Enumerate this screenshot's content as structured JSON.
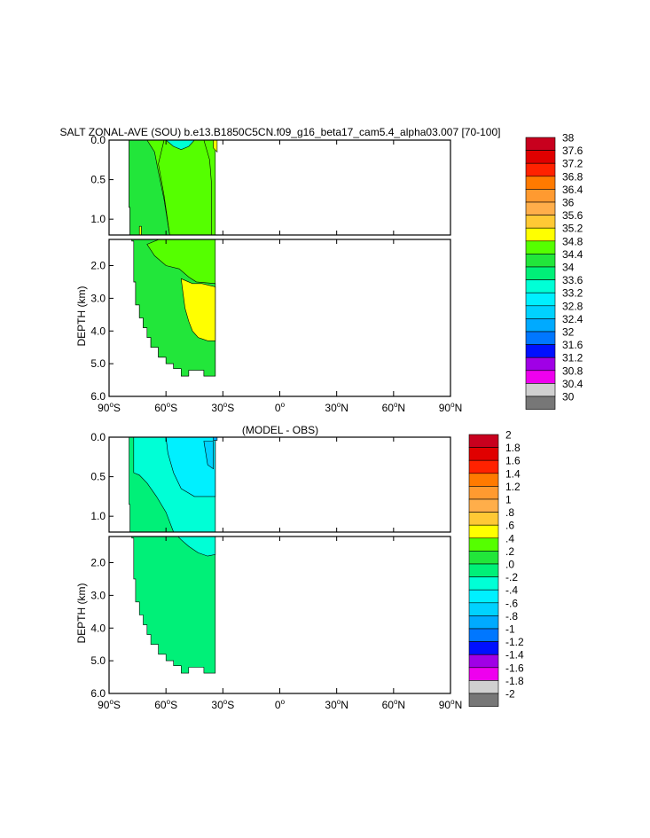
{
  "chart_data": [
    {
      "type": "heatmap",
      "title": "SALT ZONAL-AVE (SOU) b.e13.B1850C5CN.f09_g16_beta17_cam5.4_alpha03.007 [70-100]",
      "ylabel": "DEPTH (km)",
      "xlabel": "",
      "x_ticks": [
        {
          "value": -90,
          "deg": "90",
          "hem": "S"
        },
        {
          "value": -60,
          "deg": "60",
          "hem": "S"
        },
        {
          "value": -30,
          "deg": "30",
          "hem": "S"
        },
        {
          "value": 0,
          "deg": "0",
          "hem": ""
        },
        {
          "value": 30,
          "deg": "30",
          "hem": "N"
        },
        {
          "value": 60,
          "deg": "60",
          "hem": "N"
        },
        {
          "value": 90,
          "deg": "90",
          "hem": "N"
        }
      ],
      "xlim": [
        -90,
        90
      ],
      "ylim_upper": [
        0,
        1.2
      ],
      "ylim_lower": [
        1.2,
        6.0
      ],
      "y_ticks_upper": [
        "0.0",
        "0.5",
        "1.0"
      ],
      "y_ticks_upper_values": [
        0,
        0.5,
        1.0
      ],
      "y_ticks_lower": [
        "2.0",
        "3.0",
        "4.0",
        "5.0",
        "6.0"
      ],
      "y_ticks_lower_values": [
        2,
        3,
        4,
        5,
        6
      ],
      "colorbar_labels": [
        "38",
        "37.6",
        "37.2",
        "36.8",
        "36.4",
        "36",
        "35.6",
        "35.2",
        "34.8",
        "34.4",
        "34",
        "33.6",
        "33.2",
        "32.8",
        "32.4",
        "32",
        "31.6",
        "31.2",
        "30.8",
        "30.4",
        "30"
      ],
      "colorbar_colors": [
        "#c8001e",
        "#e00000",
        "#ff2200",
        "#ff7a00",
        "#ff9a30",
        "#ffae4a",
        "#ffc935",
        "#ffff00",
        "#55ff00",
        "#22e63a",
        "#00f078",
        "#00ffd6",
        "#00f0ff",
        "#00d2ff",
        "#00aaff",
        "#0077ff",
        "#0010ff",
        "#a000e6",
        "#ee00ee",
        "#d0d0d0",
        "#777777"
      ],
      "regions": [
        {
          "level": "34.4",
          "color": "#55ff00",
          "polygon": [
            [
              -79.5,
              0
            ],
            [
              -34,
              0
            ],
            [
              -34,
              5.38
            ],
            [
              -40,
              5.38
            ],
            [
              -40,
              5.2
            ],
            [
              -48,
              5.2
            ],
            [
              -48,
              5.38
            ],
            [
              -52,
              5.38
            ],
            [
              -52,
              5.15
            ],
            [
              -56,
              5.15
            ],
            [
              -56,
              5.0
            ],
            [
              -60,
              5.0
            ],
            [
              -60,
              4.8
            ],
            [
              -64,
              4.8
            ],
            [
              -64,
              4.5
            ],
            [
              -68,
              4.5
            ],
            [
              -68,
              4.2
            ],
            [
              -70,
              4.2
            ],
            [
              -70,
              3.9
            ],
            [
              -72,
              3.9
            ],
            [
              -72,
              3.6
            ],
            [
              -74,
              3.6
            ],
            [
              -74,
              3.2
            ],
            [
              -76,
              3.2
            ],
            [
              -76,
              2.5
            ],
            [
              -77,
              2.5
            ],
            [
              -77,
              1.25
            ],
            [
              -78,
              1.25
            ],
            [
              -78,
              1.2
            ],
            [
              -79,
              1.2
            ],
            [
              -79,
              0.85
            ],
            [
              -79.5,
              0.85
            ]
          ]
        },
        {
          "level": "34.0",
          "color": "#22e63a",
          "polygon": [
            [
              -79.5,
              0
            ],
            [
              -70,
              0
            ],
            [
              -66,
              0.15
            ],
            [
              -64,
              0.4
            ],
            [
              -61,
              0.75
            ],
            [
              -58,
              1.2
            ],
            [
              -58,
              1.2
            ],
            [
              -70,
              1.35
            ],
            [
              -66,
              1.7
            ],
            [
              -60,
              2.0
            ],
            [
              -53,
              2.1
            ],
            [
              -48,
              2.35
            ],
            [
              -44,
              2.5
            ],
            [
              -34,
              2.55
            ],
            [
              -34,
              5.38
            ],
            [
              -40,
              5.38
            ],
            [
              -40,
              5.2
            ],
            [
              -48,
              5.2
            ],
            [
              -48,
              5.38
            ],
            [
              -52,
              5.38
            ],
            [
              -52,
              5.15
            ],
            [
              -56,
              5.15
            ],
            [
              -56,
              5.0
            ],
            [
              -60,
              5.0
            ],
            [
              -60,
              4.8
            ],
            [
              -64,
              4.8
            ],
            [
              -64,
              4.5
            ],
            [
              -68,
              4.5
            ],
            [
              -68,
              4.2
            ],
            [
              -70,
              4.2
            ],
            [
              -70,
              3.9
            ],
            [
              -72,
              3.9
            ],
            [
              -72,
              3.6
            ],
            [
              -74,
              3.6
            ],
            [
              -74,
              3.2
            ],
            [
              -76,
              3.2
            ],
            [
              -76,
              2.5
            ],
            [
              -77,
              2.5
            ],
            [
              -77,
              1.25
            ],
            [
              -78,
              1.25
            ],
            [
              -78,
              1.2
            ],
            [
              -79,
              1.2
            ],
            [
              -79,
              0.85
            ],
            [
              -79.5,
              0.85
            ]
          ]
        },
        {
          "level": "34.4",
          "color": "#55ff00",
          "polygon": [
            [
              -61,
              0
            ],
            [
              -40,
              0
            ],
            [
              -37,
              0.25
            ],
            [
              -36,
              0.55
            ],
            [
              -36,
              1.2
            ],
            [
              -58,
              1.2
            ],
            [
              -61,
              0.7
            ],
            [
              -64,
              0.3
            ]
          ]
        },
        {
          "level": "34.8",
          "color": "#ffff00",
          "polygon": [
            [
              -52,
              2.4
            ],
            [
              -46,
              2.55
            ],
            [
              -41,
              2.55
            ],
            [
              -34,
              2.65
            ],
            [
              -34,
              4.3
            ],
            [
              -38,
              4.3
            ],
            [
              -43,
              4.2
            ],
            [
              -46,
              4.0
            ],
            [
              -48,
              3.7
            ],
            [
              -50,
              3.3
            ]
          ]
        },
        {
          "level": "34.8",
          "color": "#ffff00",
          "polygon": [
            [
              -35,
              0
            ],
            [
              -33,
              0
            ],
            [
              -33,
              0.15
            ],
            [
              -35,
              0.1
            ]
          ]
        },
        {
          "level": "34.8",
          "color": "#ffff00",
          "polygon": [
            [
              -74,
              1.09
            ],
            [
              -73,
              1.09
            ],
            [
              -73,
              1.2
            ],
            [
              -74,
              1.2
            ]
          ]
        },
        {
          "level": "33.6",
          "color": "#00ffd6",
          "polygon": [
            [
              -60,
              0
            ],
            [
              -45,
              0
            ],
            [
              -48,
              0.08
            ],
            [
              -52,
              0.12
            ],
            [
              -56,
              0.08
            ]
          ]
        }
      ]
    },
    {
      "type": "heatmap",
      "title": "(MODEL - OBS)",
      "ylabel": "DEPTH (km)",
      "xlabel": "",
      "x_ticks": [
        {
          "value": -90,
          "deg": "90",
          "hem": "S"
        },
        {
          "value": -60,
          "deg": "60",
          "hem": "S"
        },
        {
          "value": -30,
          "deg": "30",
          "hem": "S"
        },
        {
          "value": 0,
          "deg": "0",
          "hem": ""
        },
        {
          "value": 30,
          "deg": "30",
          "hem": "N"
        },
        {
          "value": 60,
          "deg": "60",
          "hem": "N"
        },
        {
          "value": 90,
          "deg": "90",
          "hem": "N"
        }
      ],
      "xlim": [
        -90,
        90
      ],
      "ylim_upper": [
        0,
        1.2
      ],
      "ylim_lower": [
        1.2,
        6.0
      ],
      "y_ticks_upper": [
        "0.0",
        "0.5",
        "1.0"
      ],
      "y_ticks_upper_values": [
        0,
        0.5,
        1.0
      ],
      "y_ticks_lower": [
        "2.0",
        "3.0",
        "4.0",
        "5.0",
        "6.0"
      ],
      "y_ticks_lower_values": [
        2,
        3,
        4,
        5,
        6
      ],
      "colorbar_labels": [
        "2",
        "1.8",
        "1.6",
        "1.4",
        "1.2",
        "1",
        ".8",
        ".6",
        ".4",
        ".2",
        ".0",
        "-.2",
        "-.4",
        "-.6",
        "-.8",
        "-1",
        "-1.2",
        "-1.4",
        "-1.6",
        "-1.8",
        "-2"
      ],
      "colorbar_colors": [
        "#c8001e",
        "#e00000",
        "#ff2200",
        "#ff7a00",
        "#ff9a30",
        "#ffae4a",
        "#ffc935",
        "#ffff00",
        "#55ff00",
        "#22e63a",
        "#00f078",
        "#00ffd6",
        "#00f0ff",
        "#00d2ff",
        "#00aaff",
        "#0077ff",
        "#0010ff",
        "#a000e6",
        "#ee00ee",
        "#d0d0d0",
        "#777777"
      ],
      "regions": [
        {
          "level": ".0",
          "color": "#00f078",
          "polygon": [
            [
              -79.5,
              0
            ],
            [
              -34,
              0
            ],
            [
              -34,
              5.38
            ],
            [
              -40,
              5.38
            ],
            [
              -40,
              5.2
            ],
            [
              -48,
              5.2
            ],
            [
              -48,
              5.38
            ],
            [
              -52,
              5.38
            ],
            [
              -52,
              5.15
            ],
            [
              -56,
              5.15
            ],
            [
              -56,
              5.0
            ],
            [
              -60,
              5.0
            ],
            [
              -60,
              4.8
            ],
            [
              -64,
              4.8
            ],
            [
              -64,
              4.5
            ],
            [
              -68,
              4.5
            ],
            [
              -68,
              4.2
            ],
            [
              -70,
              4.2
            ],
            [
              -70,
              3.9
            ],
            [
              -72,
              3.9
            ],
            [
              -72,
              3.6
            ],
            [
              -74,
              3.6
            ],
            [
              -74,
              3.2
            ],
            [
              -76,
              3.2
            ],
            [
              -76,
              2.5
            ],
            [
              -77,
              2.5
            ],
            [
              -77,
              1.25
            ],
            [
              -78,
              1.25
            ],
            [
              -78,
              1.2
            ],
            [
              -79,
              1.2
            ],
            [
              -79,
              0.85
            ],
            [
              -79.5,
              0.85
            ]
          ]
        },
        {
          "level": "-.2",
          "color": "#00ffd6",
          "polygon": [
            [
              -77,
              0
            ],
            [
              -34,
              0
            ],
            [
              -34,
              1.75
            ],
            [
              -38,
              1.8
            ],
            [
              -43,
              1.7
            ],
            [
              -48,
              1.5
            ],
            [
              -52,
              1.3
            ],
            [
              -56,
              1.2
            ],
            [
              -60,
              0.95
            ],
            [
              -65,
              0.75
            ],
            [
              -70,
              0.58
            ],
            [
              -74,
              0.48
            ],
            [
              -77,
              0.45
            ]
          ]
        },
        {
          "level": "-.4",
          "color": "#00f0ff",
          "polygon": [
            [
              -60,
              0
            ],
            [
              -34,
              0
            ],
            [
              -34,
              0.75
            ],
            [
              -45,
              0.75
            ],
            [
              -52,
              0.65
            ],
            [
              -56,
              0.45
            ],
            [
              -59,
              0.2
            ]
          ]
        },
        {
          "level": "-.6",
          "color": "#00d2ff",
          "polygon": [
            [
              -40,
              0.05
            ],
            [
              -35,
              0.05
            ],
            [
              -35,
              0.4
            ],
            [
              -38,
              0.35
            ]
          ]
        },
        {
          "level": "-.8",
          "color": "#00aaff",
          "polygon": [
            [
              -35,
              0
            ],
            [
              -33,
              0
            ],
            [
              -33,
              0.04
            ],
            [
              -35,
              0.04
            ]
          ]
        }
      ]
    }
  ]
}
